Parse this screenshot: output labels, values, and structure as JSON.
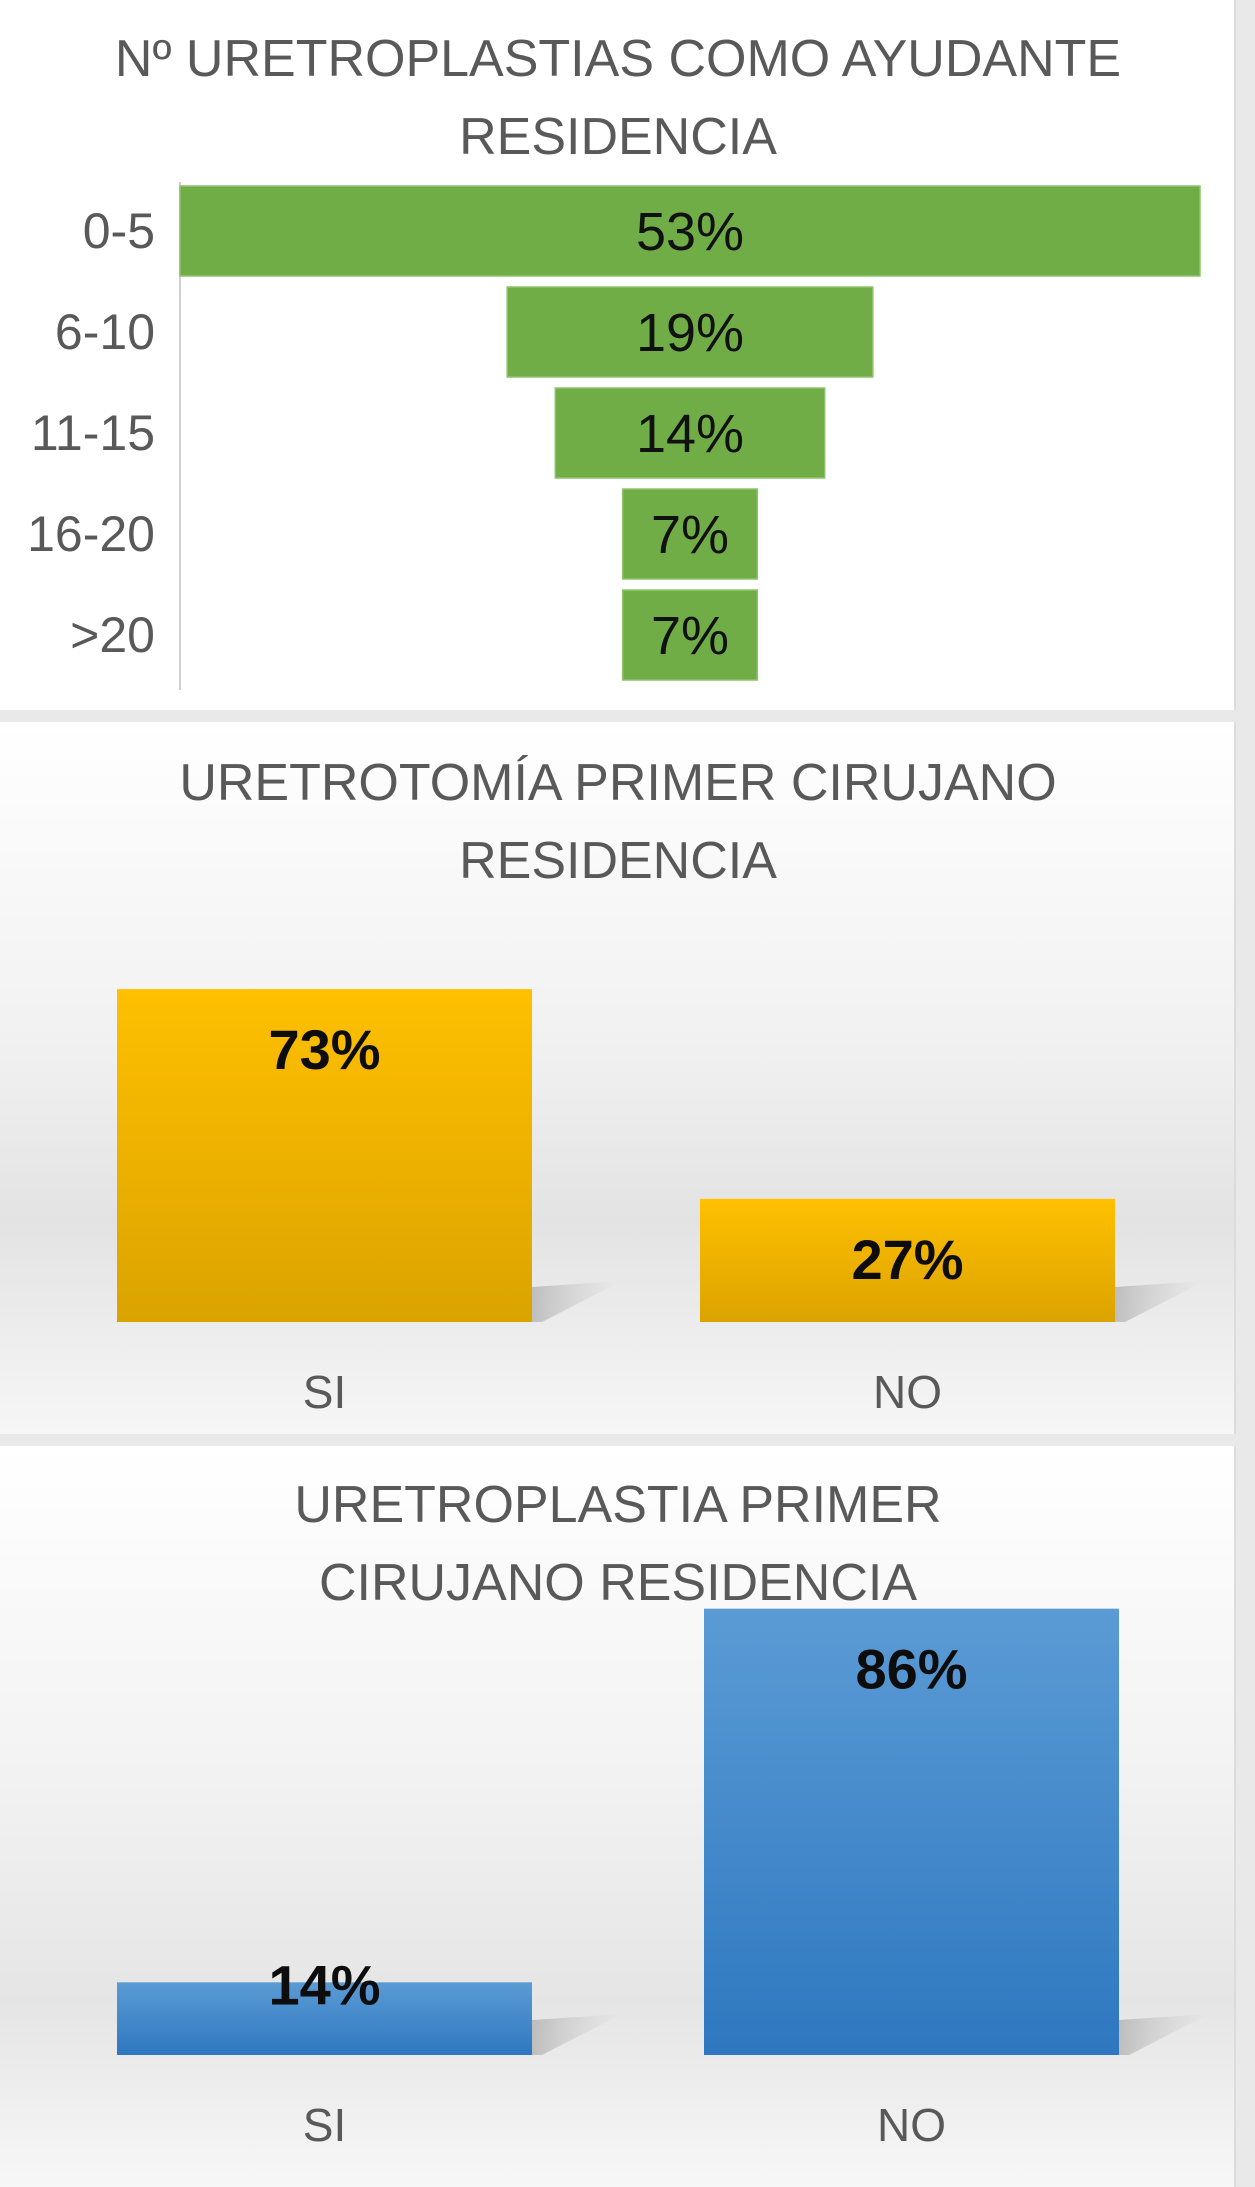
{
  "chart_data": [
    {
      "type": "bar",
      "orientation": "horizontal-funnel",
      "title": "Nº URETROPLASTIAS COMO AYUDANTE\nRESIDENCIA",
      "categories": [
        "0-5",
        "6-10",
        "11-15",
        "16-20",
        ">20"
      ],
      "values": [
        53,
        19,
        14,
        7,
        7
      ],
      "value_labels": [
        "53%",
        "19%",
        "14%",
        "7%",
        "7%"
      ],
      "color": "#70ad47"
    },
    {
      "type": "bar",
      "title": "URETROTOMÍA PRIMER CIRUJANO\nRESIDENCIA",
      "categories": [
        "SI",
        "NO"
      ],
      "values": [
        73,
        27
      ],
      "value_labels": [
        "73%",
        "27%"
      ],
      "color": "#ffc000",
      "color_dark": "#dba300"
    },
    {
      "type": "bar",
      "title": "URETROPLASTIA PRIMER\nCIRUJANO RESIDENCIA",
      "categories": [
        "SI",
        "NO"
      ],
      "values": [
        14,
        86
      ],
      "value_labels": [
        "14%",
        "86%"
      ],
      "color": "#5b9bd5",
      "color_dark": "#2e78c0"
    }
  ]
}
